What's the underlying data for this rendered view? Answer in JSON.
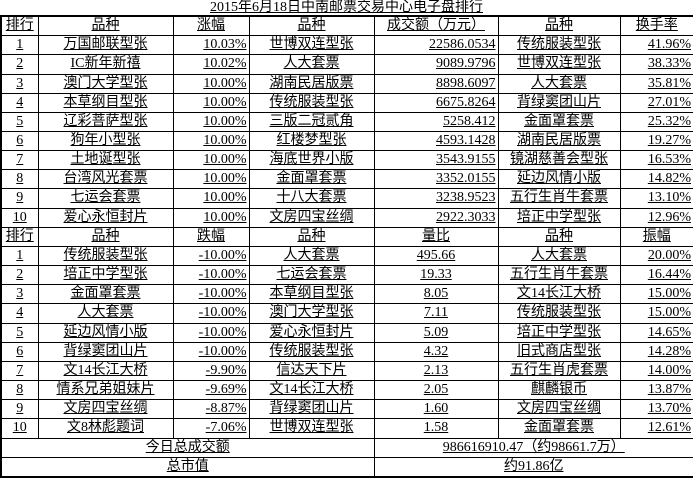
{
  "title": "2015年6月18日中南邮票交易中心电子盘排行",
  "colors": {
    "text": "#000000",
    "border": "#000000",
    "background": "#ffffff"
  },
  "chart_data": [
    {
      "type": "table",
      "title": "2015年6月18日中南邮票交易中心电子盘排行",
      "columns": [
        "排行",
        "品种",
        "涨幅",
        "品种",
        "成交额（万元）",
        "品种",
        "换手率"
      ],
      "rows": [
        [
          "1",
          "万国邮联型张",
          "10.03%",
          "世博双连型张",
          "22586.0534",
          "传统服装型张",
          "41.96%"
        ],
        [
          "2",
          "IC新年新禧",
          "10.02%",
          "人大套票",
          "9089.9796",
          "世博双连型张",
          "38.33%"
        ],
        [
          "3",
          "澳门大学型张",
          "10.00%",
          "湖南民居版票",
          "8898.6097",
          "人大套票",
          "35.81%"
        ],
        [
          "4",
          "本草纲目型张",
          "10.00%",
          "传统服装型张",
          "6675.8264",
          "背绿窦团山片",
          "27.01%"
        ],
        [
          "5",
          "辽彩菩萨型张",
          "10.00%",
          "三版二冠贰角",
          "5258.412",
          "金面罩套票",
          "25.32%"
        ],
        [
          "6",
          "狗年小型张",
          "10.00%",
          "红楼梦型张",
          "4593.1428",
          "湖南民居版票",
          "19.27%"
        ],
        [
          "7",
          "土地诞型张",
          "10.00%",
          "海底世界小版",
          "3543.9155",
          "镜湖慈善会型张",
          "16.53%"
        ],
        [
          "8",
          "台湾风光套票",
          "10.00%",
          "金面罩套票",
          "3352.0155",
          "延边风情小版",
          "14.82%"
        ],
        [
          "9",
          "七运会套票",
          "10.00%",
          "十八大套票",
          "3238.9523",
          "五行生肖牛套票",
          "13.10%"
        ],
        [
          "10",
          "爱心永恒封片",
          "10.00%",
          "文房四宝丝绸",
          "2922.3033",
          "培正中学型张",
          "12.96%"
        ]
      ]
    },
    {
      "type": "table",
      "columns": [
        "排行",
        "品种",
        "跌幅",
        "品种",
        "量比",
        "品种",
        "振幅"
      ],
      "rows": [
        [
          "1",
          "传统服装型张",
          "-10.00%",
          "人大套票",
          "495.66",
          "人大套票",
          "20.00%"
        ],
        [
          "2",
          "培正中学型张",
          "-10.00%",
          "七运会套票",
          "19.33",
          "五行生肖牛套票",
          "16.44%"
        ],
        [
          "3",
          "金面罩套票",
          "-10.00%",
          "本草纲目型张",
          "8.05",
          "文14长江大桥",
          "15.00%"
        ],
        [
          "4",
          "人大套票",
          "-10.00%",
          "澳门大学型张",
          "7.11",
          "传统服装型张",
          "15.00%"
        ],
        [
          "5",
          "延边风情小版",
          "-10.00%",
          "爱心永恒封片",
          "5.09",
          "培正中学型张",
          "14.65%"
        ],
        [
          "6",
          "背绿窦团山片",
          "-10.00%",
          "传统服装型张",
          "4.32",
          "旧式商店型张",
          "14.28%"
        ],
        [
          "7",
          "文14长江大桥",
          "-9.90%",
          "信达天下片",
          "2.13",
          "五行生肖虎套票",
          "14.00%"
        ],
        [
          "8",
          "情系兄弟姐妹片",
          "-9.69%",
          "文14长江大桥",
          "2.05",
          "麒麟银币",
          "13.87%"
        ],
        [
          "9",
          "文房四宝丝绸",
          "-8.87%",
          "背绿窦团山片",
          "1.60",
          "文房四宝丝绸",
          "13.70%"
        ],
        [
          "10",
          "文8林彪题词",
          "-7.06%",
          "世博双连型张",
          "1.58",
          "金面罩套票",
          "12.61%"
        ]
      ]
    }
  ],
  "summary": [
    {
      "label": "今日总成交额",
      "value": "986616910.47（约98661.7万）"
    },
    {
      "label": "总市值",
      "value": "约91.86亿"
    }
  ]
}
